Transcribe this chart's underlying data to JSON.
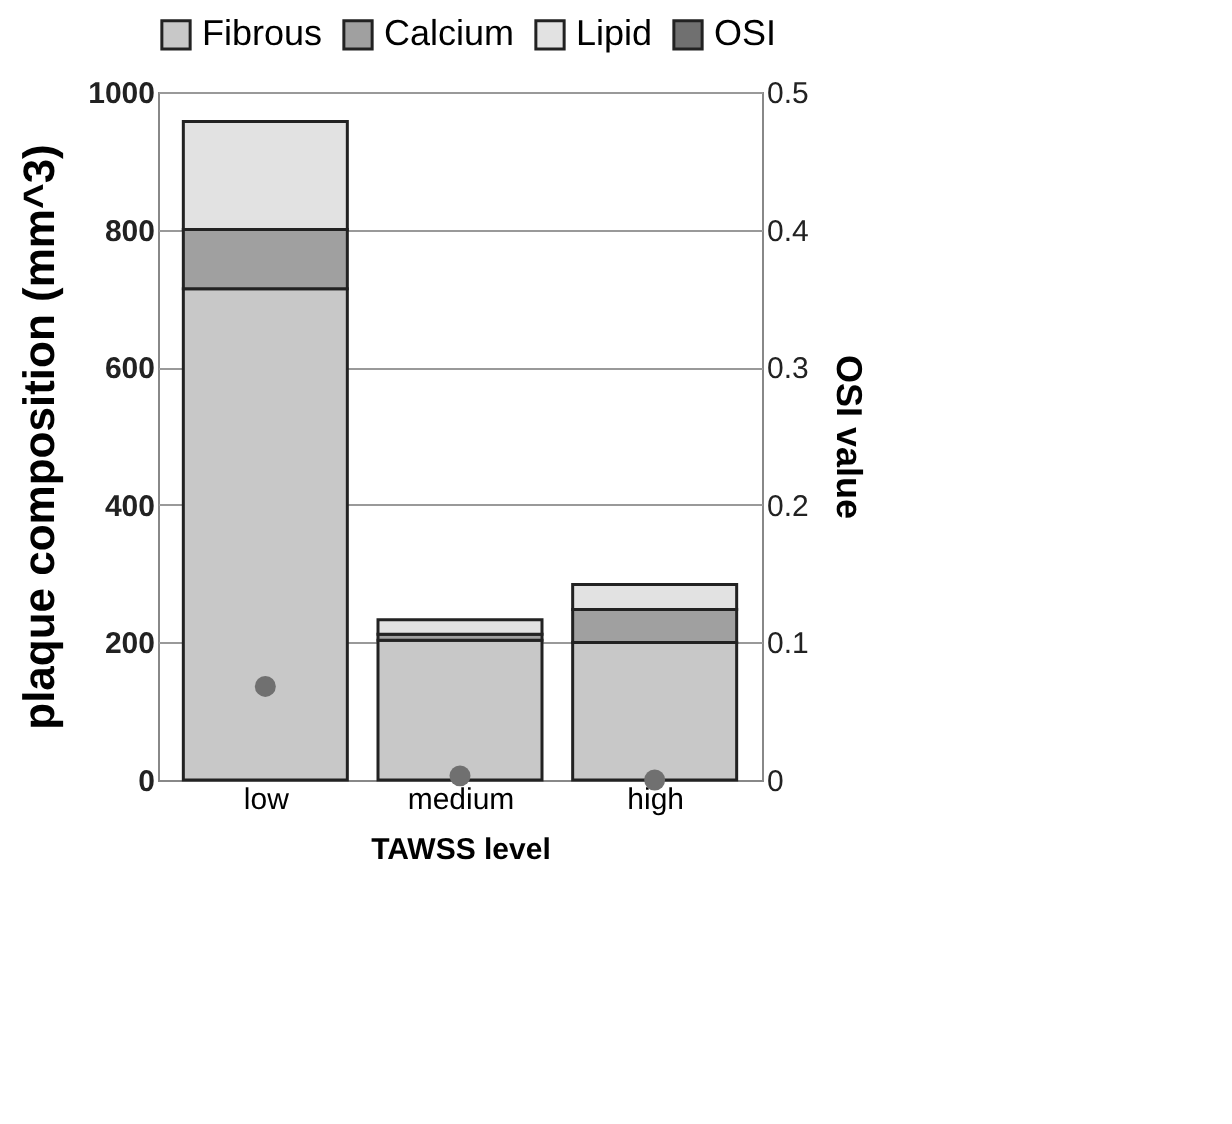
{
  "chart_data": {
    "type": "bar",
    "stacked": true,
    "categories": [
      "low",
      "medium",
      "high"
    ],
    "xlabel": "TAWSS level",
    "ylabel": "plaque composition (mm^3)",
    "y2label": "OSI value",
    "series": [
      {
        "name": "Fibrous",
        "color": "#c8c8c8",
        "values": [
          714,
          203,
          200
        ]
      },
      {
        "name": "Calcium",
        "color": "#a0a0a0",
        "values": [
          86,
          9,
          48
        ]
      },
      {
        "name": "Lipid",
        "color": "#e2e2e2",
        "values": [
          157,
          21,
          36
        ]
      },
      {
        "name": "OSI",
        "type": "scatter",
        "axis": "y2",
        "color": "#707070",
        "values": [
          0.068,
          0.003,
          0.0
        ]
      }
    ],
    "ylim": [
      0,
      1000
    ],
    "yticks": [
      0,
      200,
      400,
      600,
      800,
      1000
    ],
    "y2lim": [
      0,
      0.5
    ],
    "y2ticks": [
      0,
      0.1,
      0.2,
      0.3,
      0.4,
      0.5
    ],
    "grid": "y",
    "legend": "top",
    "marker": "circle"
  }
}
